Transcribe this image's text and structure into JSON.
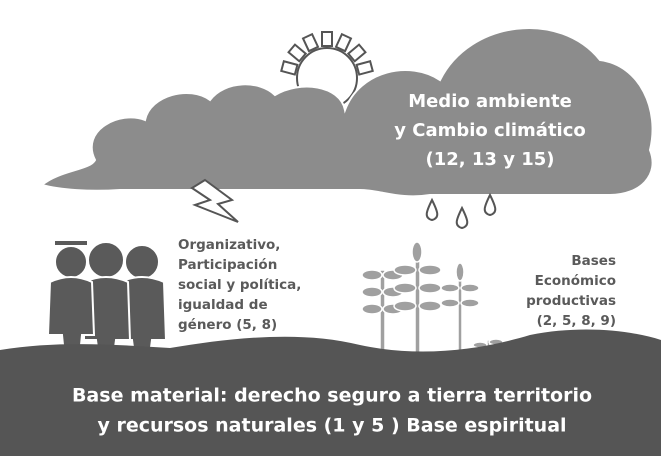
{
  "cloud": {
    "lines": [
      "Medio ambiente",
      "y Cambio climático",
      "(12, 13 y 15)"
    ]
  },
  "left_label": {
    "lines": [
      "Organizativo,",
      "Participación",
      "social y política,",
      "igualdad de",
      "género (5, 8)"
    ]
  },
  "right_label": {
    "lines": [
      "Bases",
      "Económico",
      "productivas",
      "(2, 5, 8, 9)"
    ]
  },
  "ground": {
    "lines": [
      "Base material: derecho seguro a tierra territorio",
      "y recursos naturales (1 y 5 )  Base espiritual"
    ]
  }
}
